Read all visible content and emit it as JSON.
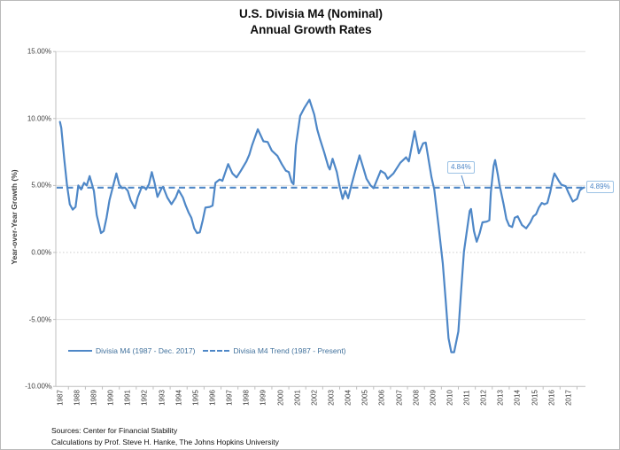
{
  "title": {
    "line1": "U.S. Divisia M4 (Nominal)",
    "line2": "Annual Growth Rates"
  },
  "y_axis": {
    "title": "Year-over-Year Growth (%)",
    "ticks": [
      {
        "label": "15.00%",
        "value": 15
      },
      {
        "label": "10.00%",
        "value": 10
      },
      {
        "label": "5.00%",
        "value": 5
      },
      {
        "label": "0.00%",
        "value": 0
      },
      {
        "label": "-5.00%",
        "value": -5
      },
      {
        "label": "-10.00%",
        "value": -10
      }
    ]
  },
  "x_axis": {
    "ticks": [
      "1987",
      "1988",
      "1989",
      "1990",
      "1991",
      "1992",
      "1993",
      "1994",
      "1995",
      "1996",
      "1997",
      "1998",
      "1999",
      "2000",
      "2001",
      "2002",
      "2003",
      "2004",
      "2005",
      "2006",
      "2007",
      "2008",
      "2009",
      "2010",
      "2011",
      "2012",
      "2013",
      "2014",
      "2015",
      "2016",
      "2017"
    ]
  },
  "legend": [
    {
      "label": "Divisia M4 (1987 - Dec. 2017)",
      "style": "solid"
    },
    {
      "label": "Divisia M4 Trend (1987 - Present)",
      "style": "dashed"
    }
  ],
  "annotations": {
    "trend_label": "4.84%",
    "latest_label": "4.89%"
  },
  "sources": {
    "line1": "Sources: Center for Financial Stability",
    "line2": "Calculations by Prof. Steve H. Hanke, The Johns Hopkins University"
  },
  "colors": {
    "line": "#4e87c7",
    "trend": "#4e87c7",
    "annotation_border": "#9cc2e5",
    "grid": "#e0e0e0",
    "zero_grid": "#cccccc",
    "axis": "#bfbfbf",
    "axis_text": "#404040",
    "legend_text": "#41719c"
  },
  "chart_data": {
    "type": "line",
    "title": "U.S. Divisia M4 (Nominal) Annual Growth Rates",
    "xlabel": "",
    "ylabel": "Year-over-Year Growth (%)",
    "ylim": [
      -10,
      15
    ],
    "xlim": [
      1986.75,
      2018.1
    ],
    "y_step": 5,
    "grid": true,
    "legend_position": "inside-bottom-left",
    "trend": {
      "name": "Divisia M4 Trend (1987 - Present)",
      "value": 4.84,
      "label": "4.84%"
    },
    "latest": {
      "value": 4.89,
      "label": "4.89%"
    },
    "series": [
      {
        "name": "Divisia M4 (1987 - Dec. 2017)",
        "style": "solid",
        "points": [
          [
            1987.0,
            9.75
          ],
          [
            1987.08,
            9.3
          ],
          [
            1987.25,
            7.0
          ],
          [
            1987.42,
            5.0
          ],
          [
            1987.58,
            3.6
          ],
          [
            1987.75,
            3.2
          ],
          [
            1987.92,
            3.4
          ],
          [
            1988.08,
            5.0
          ],
          [
            1988.25,
            4.7
          ],
          [
            1988.42,
            5.2
          ],
          [
            1988.58,
            5.0
          ],
          [
            1988.75,
            5.7
          ],
          [
            1989.0,
            4.6
          ],
          [
            1989.17,
            2.8
          ],
          [
            1989.42,
            1.45
          ],
          [
            1989.58,
            1.6
          ],
          [
            1989.75,
            2.6
          ],
          [
            1989.92,
            3.9
          ],
          [
            1990.08,
            4.7
          ],
          [
            1990.33,
            5.9
          ],
          [
            1990.5,
            5.05
          ],
          [
            1990.67,
            4.8
          ],
          [
            1990.83,
            4.85
          ],
          [
            1991.0,
            4.6
          ],
          [
            1991.17,
            3.9
          ],
          [
            1991.42,
            3.3
          ],
          [
            1991.58,
            4.1
          ],
          [
            1991.83,
            4.9
          ],
          [
            1992.0,
            4.85
          ],
          [
            1992.08,
            4.7
          ],
          [
            1992.25,
            5.1
          ],
          [
            1992.42,
            6.0
          ],
          [
            1992.58,
            5.2
          ],
          [
            1992.75,
            4.15
          ],
          [
            1993.0,
            4.8
          ],
          [
            1993.08,
            4.9
          ],
          [
            1993.33,
            4.1
          ],
          [
            1993.58,
            3.6
          ],
          [
            1993.83,
            4.1
          ],
          [
            1994.0,
            4.65
          ],
          [
            1994.25,
            4.1
          ],
          [
            1994.42,
            3.5
          ],
          [
            1994.58,
            3.0
          ],
          [
            1994.75,
            2.6
          ],
          [
            1994.92,
            1.8
          ],
          [
            1995.08,
            1.45
          ],
          [
            1995.25,
            1.5
          ],
          [
            1995.42,
            2.4
          ],
          [
            1995.58,
            3.35
          ],
          [
            1995.83,
            3.4
          ],
          [
            1996.0,
            3.5
          ],
          [
            1996.17,
            5.2
          ],
          [
            1996.42,
            5.45
          ],
          [
            1996.58,
            5.35
          ],
          [
            1996.92,
            6.6
          ],
          [
            1997.17,
            5.9
          ],
          [
            1997.42,
            5.6
          ],
          [
            1997.67,
            6.1
          ],
          [
            1998.0,
            6.8
          ],
          [
            1998.17,
            7.3
          ],
          [
            1998.33,
            8.0
          ],
          [
            1998.67,
            9.2
          ],
          [
            1999.0,
            8.3
          ],
          [
            1999.25,
            8.25
          ],
          [
            1999.5,
            7.6
          ],
          [
            1999.83,
            7.2
          ],
          [
            2000.08,
            6.6
          ],
          [
            2000.33,
            6.1
          ],
          [
            2000.5,
            6.0
          ],
          [
            2000.67,
            5.25
          ],
          [
            2000.78,
            5.1
          ],
          [
            2000.92,
            8.0
          ],
          [
            2001.17,
            10.2
          ],
          [
            2001.42,
            10.8
          ],
          [
            2001.72,
            11.4
          ],
          [
            2002.0,
            10.3
          ],
          [
            2002.17,
            9.2
          ],
          [
            2002.33,
            8.5
          ],
          [
            2002.58,
            7.5
          ],
          [
            2002.83,
            6.4
          ],
          [
            2002.92,
            6.2
          ],
          [
            2003.08,
            7.0
          ],
          [
            2003.33,
            6.0
          ],
          [
            2003.5,
            4.9
          ],
          [
            2003.67,
            4.0
          ],
          [
            2003.83,
            4.6
          ],
          [
            2004.0,
            4.05
          ],
          [
            2004.17,
            4.9
          ],
          [
            2004.42,
            6.1
          ],
          [
            2004.67,
            7.25
          ],
          [
            2004.92,
            6.2
          ],
          [
            2005.08,
            5.5
          ],
          [
            2005.33,
            5.0
          ],
          [
            2005.5,
            4.8
          ],
          [
            2005.92,
            6.1
          ],
          [
            2006.17,
            5.9
          ],
          [
            2006.33,
            5.5
          ],
          [
            2006.67,
            5.9
          ],
          [
            2007.08,
            6.7
          ],
          [
            2007.42,
            7.1
          ],
          [
            2007.58,
            6.8
          ],
          [
            2007.92,
            9.05
          ],
          [
            2008.17,
            7.4
          ],
          [
            2008.42,
            8.15
          ],
          [
            2008.58,
            8.2
          ],
          [
            2008.92,
            5.6
          ],
          [
            2009.08,
            4.7
          ],
          [
            2009.33,
            2.0
          ],
          [
            2009.58,
            -0.8
          ],
          [
            2009.75,
            -3.5
          ],
          [
            2009.92,
            -6.4
          ],
          [
            2010.08,
            -7.45
          ],
          [
            2010.25,
            -7.45
          ],
          [
            2010.5,
            -5.9
          ],
          [
            2010.67,
            -2.8
          ],
          [
            2010.83,
            0.05
          ],
          [
            2011.0,
            1.6
          ],
          [
            2011.17,
            3.1
          ],
          [
            2011.25,
            3.25
          ],
          [
            2011.42,
            1.6
          ],
          [
            2011.58,
            0.8
          ],
          [
            2011.75,
            1.4
          ],
          [
            2011.92,
            2.25
          ],
          [
            2012.17,
            2.3
          ],
          [
            2012.33,
            2.4
          ],
          [
            2012.42,
            4.5
          ],
          [
            2012.58,
            6.45
          ],
          [
            2012.67,
            6.9
          ],
          [
            2012.83,
            5.8
          ],
          [
            2012.92,
            5.1
          ],
          [
            2013.17,
            3.6
          ],
          [
            2013.33,
            2.5
          ],
          [
            2013.5,
            2.0
          ],
          [
            2013.67,
            1.9
          ],
          [
            2013.83,
            2.6
          ],
          [
            2014.0,
            2.7
          ],
          [
            2014.25,
            2.05
          ],
          [
            2014.5,
            1.8
          ],
          [
            2014.75,
            2.25
          ],
          [
            2014.92,
            2.7
          ],
          [
            2015.08,
            2.85
          ],
          [
            2015.25,
            3.35
          ],
          [
            2015.42,
            3.7
          ],
          [
            2015.58,
            3.6
          ],
          [
            2015.75,
            3.7
          ],
          [
            2015.92,
            4.5
          ],
          [
            2016.08,
            5.5
          ],
          [
            2016.17,
            5.9
          ],
          [
            2016.42,
            5.35
          ],
          [
            2016.58,
            5.05
          ],
          [
            2016.83,
            4.95
          ],
          [
            2017.0,
            4.45
          ],
          [
            2017.25,
            3.8
          ],
          [
            2017.5,
            4.0
          ],
          [
            2017.67,
            4.65
          ],
          [
            2017.83,
            4.8
          ],
          [
            2017.92,
            4.85
          ]
        ]
      }
    ]
  }
}
